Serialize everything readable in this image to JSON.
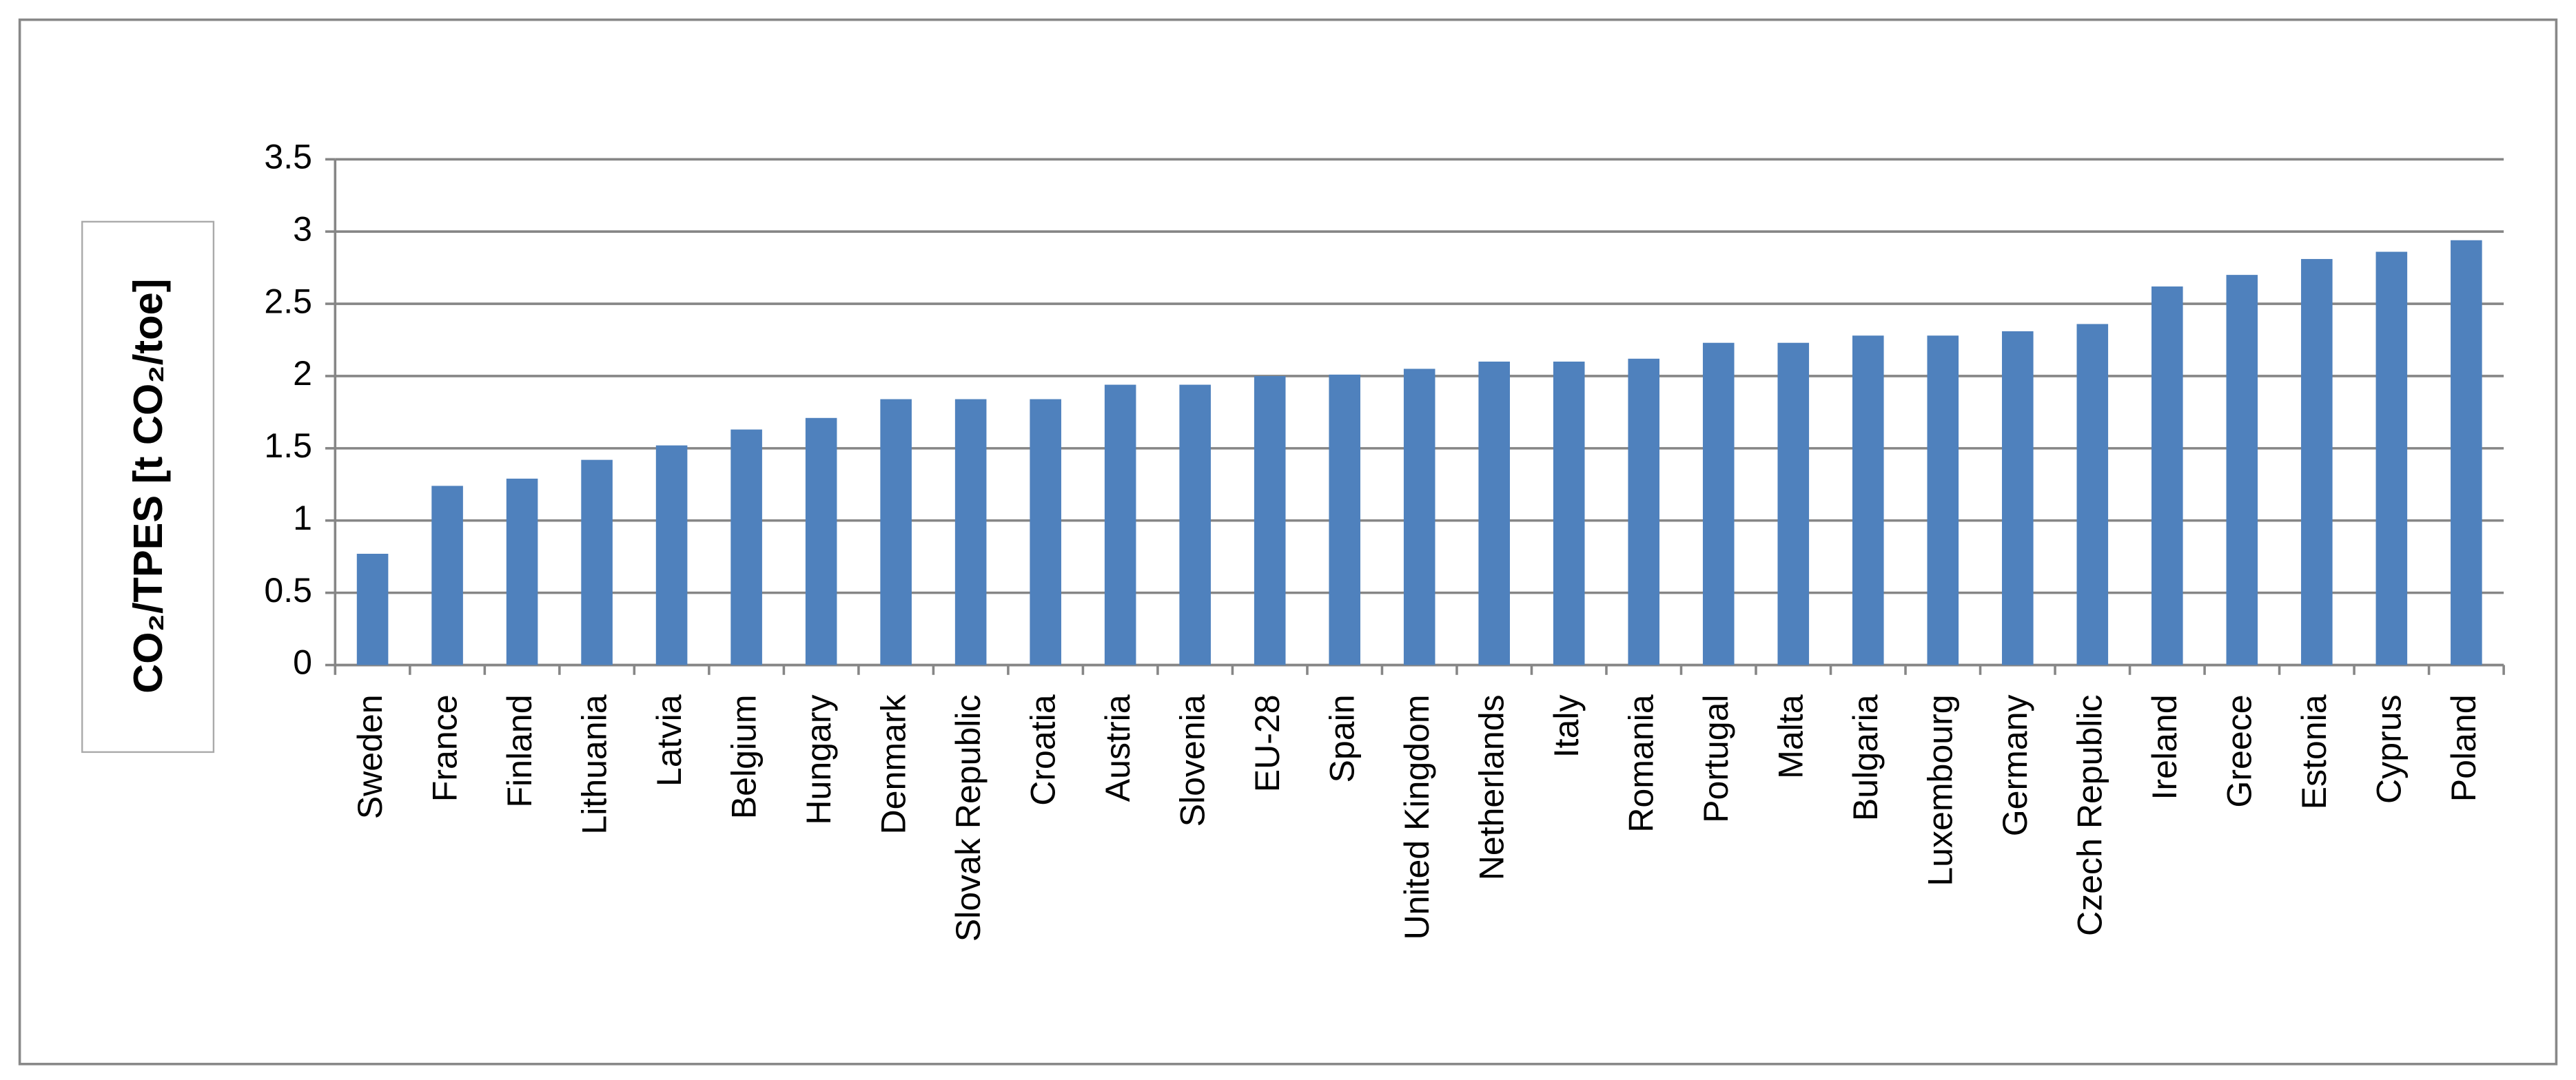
{
  "chart_data": {
    "type": "bar",
    "y_label": "CO₂/TPES [t CO₂/toe]",
    "categories": [
      "Sweden",
      "France",
      "Finland",
      "Lithuania",
      "Latvia",
      "Belgium",
      "Hungary",
      "Denmark",
      "Slovak Republic",
      "Croatia",
      "Austria",
      "Slovenia",
      "EU-28",
      "Spain",
      "United Kingdom",
      "Netherlands",
      "Italy",
      "Romania",
      "Portugal",
      "Malta",
      "Bulgaria",
      "Luxembourg",
      "Germany",
      "Czech Republic",
      "Ireland",
      "Greece",
      "Estonia",
      "Cyprus",
      "Poland"
    ],
    "values": [
      0.77,
      1.24,
      1.29,
      1.42,
      1.52,
      1.63,
      1.71,
      1.84,
      1.84,
      1.84,
      1.94,
      1.94,
      2.0,
      2.01,
      2.05,
      2.1,
      2.1,
      2.12,
      2.23,
      2.23,
      2.28,
      2.28,
      2.31,
      2.36,
      2.62,
      2.7,
      2.81,
      2.86,
      2.94
    ],
    "color": "#4f81bd",
    "ylim": [
      0,
      3.5
    ],
    "yticks": [
      0,
      0.5,
      1,
      1.5,
      2,
      2.5,
      3,
      3.5
    ],
    "grid": true
  }
}
